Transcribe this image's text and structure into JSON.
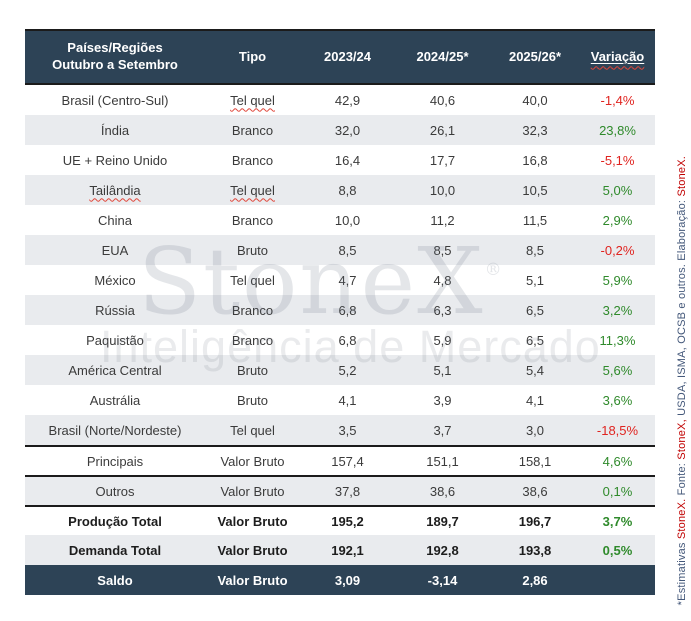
{
  "colors": {
    "header_bg": "#2d4356",
    "row_alt": "#e9ebee",
    "positive": "#2f8a2b",
    "negative": "#e02420",
    "note_blue": "#44587a",
    "note_red": "#c00000"
  },
  "header": {
    "col1_line1": "Países/Regiões",
    "col1_line2": "Outubro a Setembro",
    "cols": [
      "Tipo",
      "2023/24",
      "2024/25*",
      "2025/26*",
      "Variação"
    ]
  },
  "chart_data": {
    "type": "table",
    "columns": [
      "Países/Regiões Outubro a Setembro",
      "Tipo",
      "2023/24",
      "2024/25*",
      "2025/26*",
      "Variação"
    ],
    "rows": [
      {
        "name": "Brasil (Centro-Sul)",
        "tipo": "Tel quel",
        "y2324": "42,9",
        "y2425": "40,6",
        "y2526": "40,0",
        "variacao": "-1,4%",
        "variacao_sign": "neg",
        "tipo_misspelled": true
      },
      {
        "name": "Índia",
        "tipo": "Branco",
        "y2324": "32,0",
        "y2425": "26,1",
        "y2526": "32,3",
        "variacao": "23,8%",
        "variacao_sign": "pos"
      },
      {
        "name": "UE + Reino Unido",
        "tipo": "Branco",
        "y2324": "16,4",
        "y2425": "17,7",
        "y2526": "16,8",
        "variacao": "-5,1%",
        "variacao_sign": "neg"
      },
      {
        "name": "Tailândia",
        "tipo": "Tel quel",
        "y2324": "8,8",
        "y2425": "10,0",
        "y2526": "10,5",
        "variacao": "5,0%",
        "variacao_sign": "pos",
        "name_misspelled": true,
        "tipo_misspelled": true
      },
      {
        "name": "China",
        "tipo": "Branco",
        "y2324": "10,0",
        "y2425": "11,2",
        "y2526": "11,5",
        "variacao": "2,9%",
        "variacao_sign": "pos"
      },
      {
        "name": "EUA",
        "tipo": "Bruto",
        "y2324": "8,5",
        "y2425": "8,5",
        "y2526": "8,5",
        "variacao": "-0,2%",
        "variacao_sign": "neg"
      },
      {
        "name": "México",
        "tipo": "Tel quel",
        "y2324": "4,7",
        "y2425": "4,8",
        "y2526": "5,1",
        "variacao": "5,9%",
        "variacao_sign": "pos"
      },
      {
        "name": "Rússia",
        "tipo": "Branco",
        "y2324": "6,8",
        "y2425": "6,3",
        "y2526": "6,5",
        "variacao": "3,2%",
        "variacao_sign": "pos"
      },
      {
        "name": "Paquistão",
        "tipo": "Branco",
        "y2324": "6,8",
        "y2425": "5,9",
        "y2526": "6,5",
        "variacao": "11,3%",
        "variacao_sign": "pos"
      },
      {
        "name": "América Central",
        "tipo": "Bruto",
        "y2324": "5,2",
        "y2425": "5,1",
        "y2526": "5,4",
        "variacao": "5,6%",
        "variacao_sign": "pos"
      },
      {
        "name": "Austrália",
        "tipo": "Bruto",
        "y2324": "4,1",
        "y2425": "3,9",
        "y2526": "4,1",
        "variacao": "3,6%",
        "variacao_sign": "pos"
      },
      {
        "name": "Brasil (Norte/Nordeste)",
        "tipo": "Tel quel",
        "y2324": "3,5",
        "y2425": "3,7",
        "y2526": "3,0",
        "variacao": "-18,5%",
        "variacao_sign": "neg"
      },
      {
        "name": "Principais",
        "tipo": "Valor Bruto",
        "y2324": "157,4",
        "y2425": "151,1",
        "y2526": "158,1",
        "variacao": "4,6%",
        "variacao_sign": "pos",
        "separator_above": true
      },
      {
        "name": "Outros",
        "tipo": "Valor Bruto",
        "y2324": "37,8",
        "y2425": "38,6",
        "y2526": "38,6",
        "variacao": "0,1%",
        "variacao_sign": "pos",
        "separator_above": true
      },
      {
        "name": "Produção Total",
        "tipo": "Valor Bruto",
        "y2324": "195,2",
        "y2425": "189,7",
        "y2526": "196,7",
        "variacao": "3,7%",
        "variacao_sign": "pos",
        "bold": true,
        "separator_above": true
      },
      {
        "name": "Demanda Total",
        "tipo": "Valor Bruto",
        "y2324": "192,1",
        "y2425": "192,8",
        "y2526": "193,8",
        "variacao": "0,5%",
        "variacao_sign": "pos",
        "bold": true
      },
      {
        "name": "Saldo",
        "tipo": "Valor Bruto",
        "y2324": "3,09",
        "y2425": "-3,14",
        "y2526": "2,86",
        "variacao": "",
        "bold": true,
        "dark": true
      }
    ]
  },
  "watermark": {
    "brand": "StoneX",
    "registered": "®",
    "subtitle": "Inteligência de Mercado"
  },
  "side_note": {
    "segments": [
      {
        "text": "*Estimativas ",
        "color": "blue"
      },
      {
        "text": "StoneX.",
        "color": "red",
        "misspelled": true
      },
      {
        "text": " Fonte: ",
        "color": "blue"
      },
      {
        "text": "StoneX,",
        "color": "red",
        "misspelled": true
      },
      {
        "text": " USDA, ISMA, OCSB e outros. Elaboração: ",
        "color": "blue"
      },
      {
        "text": "StoneX.",
        "color": "red",
        "misspelled": true
      }
    ]
  }
}
